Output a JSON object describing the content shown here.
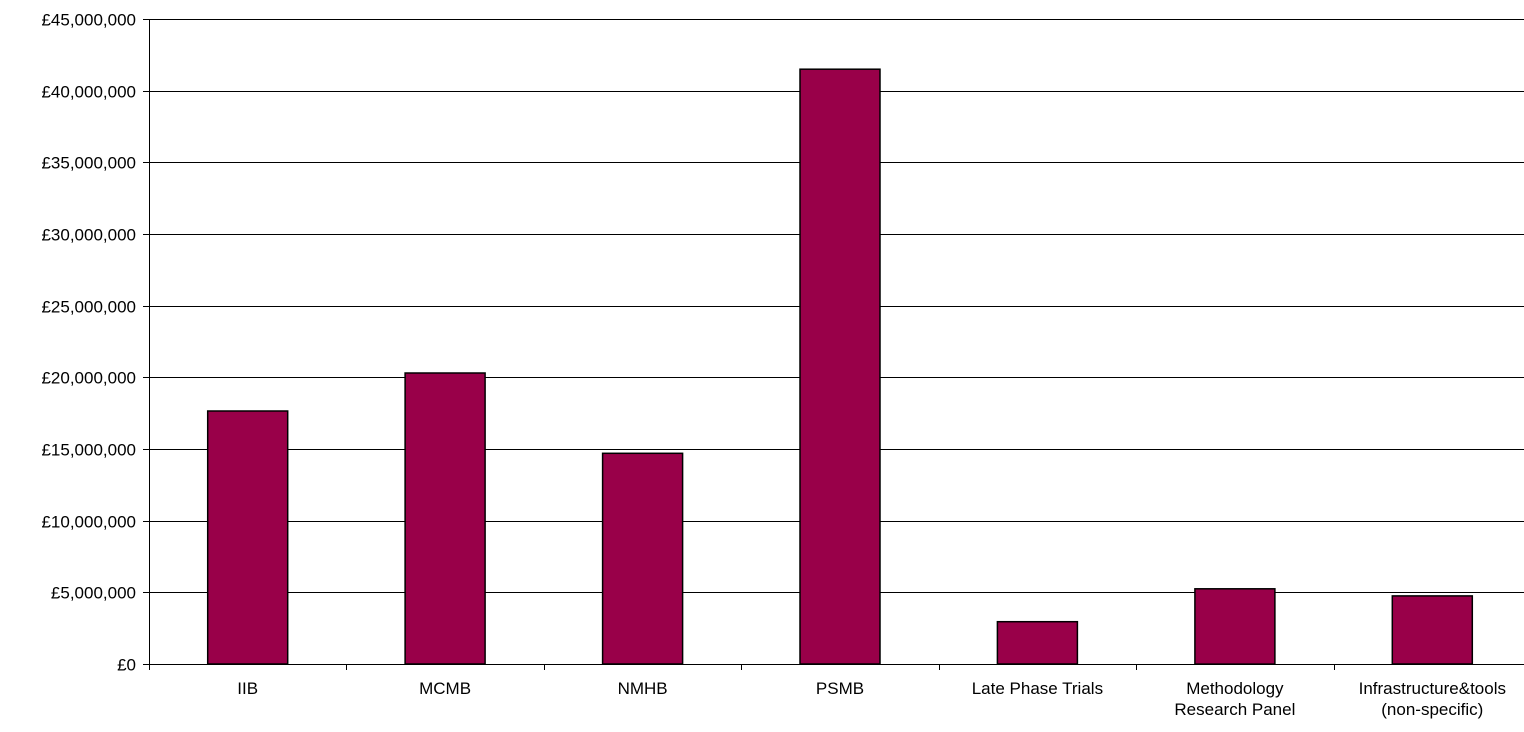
{
  "chart_data": {
    "type": "bar",
    "title": "",
    "xlabel": "",
    "ylabel": "",
    "categories": [
      [
        "IIB"
      ],
      [
        "MCMB"
      ],
      [
        "NMHB"
      ],
      [
        "PSMB"
      ],
      [
        "Late Phase Trials"
      ],
      [
        "Methodology",
        "Research Panel"
      ],
      [
        "Infrastructure&tools",
        "(non-specific)"
      ]
    ],
    "values": [
      17650000,
      20300000,
      14700000,
      41500000,
      2950000,
      5250000,
      4750000
    ],
    "ylim": [
      0,
      45000000
    ],
    "y_ticks": [
      0,
      5000000,
      10000000,
      15000000,
      20000000,
      25000000,
      30000000,
      35000000,
      40000000,
      45000000
    ],
    "y_tick_labels": [
      "£0",
      "£5,000,000",
      "£10,000,000",
      "£15,000,000",
      "£20,000,000",
      "£25,000,000",
      "£30,000,000",
      "£35,000,000",
      "£40,000,000",
      "£45,000,000"
    ],
    "grid": true,
    "legend": "none",
    "bar_color": "#990049",
    "bar_edge_color": "#000000",
    "gridline_color": "#000000"
  }
}
